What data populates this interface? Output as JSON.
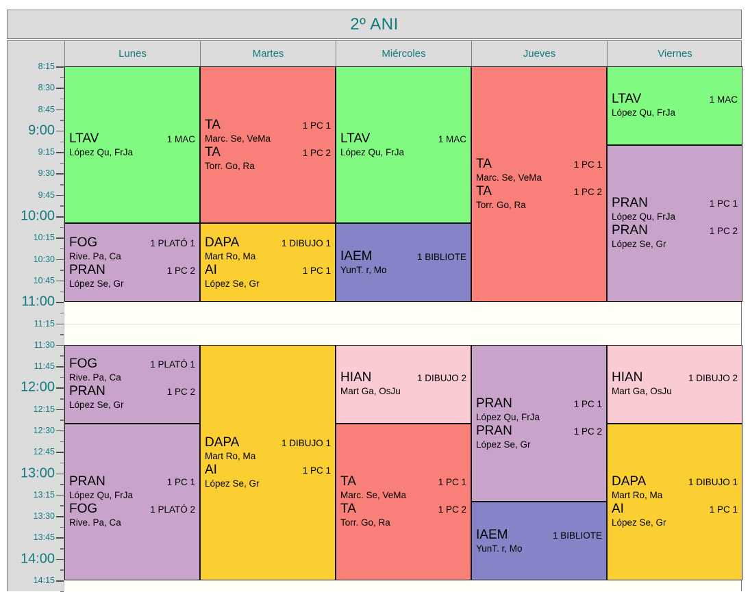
{
  "title": "2º ANI",
  "colors": {
    "accent_teal": "#0F7B7E",
    "header_bg": "#DCDCDC",
    "grid_bg": "#FFFFF6",
    "outer_border": "#7A7A7A",
    "block_border": "#141414",
    "green": "#81FA81",
    "salmon": "#F98078",
    "lilac": "#C8A4CA",
    "gold": "#FBCE31",
    "periwinkle": "#8584C6",
    "pink": "#FBCBD3"
  },
  "days": [
    "Lunes",
    "Martes",
    "Miércoles",
    "Jueves",
    "Viernes"
  ],
  "time_axis": {
    "start": "8:15",
    "end": "14:15",
    "labels": [
      {
        "t": "8:15",
        "hour": false
      },
      {
        "t": "8:30",
        "hour": false
      },
      {
        "t": "8:45",
        "hour": false
      },
      {
        "t": "9:00",
        "hour": true
      },
      {
        "t": "9:15",
        "hour": false
      },
      {
        "t": "9:30",
        "hour": false
      },
      {
        "t": "9:45",
        "hour": false
      },
      {
        "t": "10:00",
        "hour": true
      },
      {
        "t": "10:15",
        "hour": false
      },
      {
        "t": "10:30",
        "hour": false
      },
      {
        "t": "10:45",
        "hour": false
      },
      {
        "t": "11:00",
        "hour": true
      },
      {
        "t": "11:15",
        "hour": false
      },
      {
        "t": "11:30",
        "hour": false
      },
      {
        "t": "11:45",
        "hour": false
      },
      {
        "t": "12:00",
        "hour": true
      },
      {
        "t": "12:15",
        "hour": false
      },
      {
        "t": "12:30",
        "hour": false
      },
      {
        "t": "12:45",
        "hour": false
      },
      {
        "t": "13:00",
        "hour": true
      },
      {
        "t": "13:15",
        "hour": false
      },
      {
        "t": "13:30",
        "hour": false
      },
      {
        "t": "13:45",
        "hour": false
      },
      {
        "t": "14:00",
        "hour": true
      },
      {
        "t": "14:15",
        "hour": false
      }
    ],
    "break_separator_at": "11:15"
  },
  "schedule": [
    {
      "day": "Lunes",
      "blocks": [
        {
          "start": "8:15",
          "end": "10:05",
          "color": "green",
          "entries": [
            {
              "subject": "LTAV",
              "room": "1 MAC",
              "teacher": "López Qu, FrJa"
            }
          ]
        },
        {
          "start": "10:05",
          "end": "11:00",
          "color": "lilac",
          "entries": [
            {
              "subject": "FOG",
              "room": "1 PLATÓ 1",
              "teacher": "Rive. Pa, Ca"
            },
            {
              "subject": "PRAN",
              "room": "1 PC 2",
              "teacher": "López Se, Gr"
            }
          ]
        },
        {
          "start": "11:30",
          "end": "12:25",
          "color": "lilac",
          "entries": [
            {
              "subject": "FOG",
              "room": "1 PLATÓ 1",
              "teacher": "Rive. Pa, Ca"
            },
            {
              "subject": "PRAN",
              "room": "1 PC 2",
              "teacher": "López Se, Gr"
            }
          ]
        },
        {
          "start": "12:25",
          "end": "14:15",
          "color": "lilac",
          "entries": [
            {
              "subject": "PRAN",
              "room": "1 PC 1",
              "teacher": "López Qu, FrJa"
            },
            {
              "subject": "FOG",
              "room": "1 PLATÓ 2",
              "teacher": "Rive. Pa, Ca"
            }
          ]
        }
      ]
    },
    {
      "day": "Martes",
      "blocks": [
        {
          "start": "8:15",
          "end": "10:05",
          "color": "salmon",
          "entries": [
            {
              "subject": "TA",
              "room": "1 PC 1",
              "teacher": "Marc. Se, VeMa"
            },
            {
              "subject": "TA",
              "room": "1 PC 2",
              "teacher": "Torr. Go, Ra"
            }
          ]
        },
        {
          "start": "10:05",
          "end": "11:00",
          "color": "gold",
          "entries": [
            {
              "subject": "DAPA",
              "room": "1 DIBUJO 1",
              "teacher": "Mart Ro, Ma"
            },
            {
              "subject": "AI",
              "room": "1 PC 1",
              "teacher": "López Se, Gr"
            }
          ]
        },
        {
          "start": "11:30",
          "end": "14:15",
          "color": "gold",
          "entries": [
            {
              "subject": "DAPA",
              "room": "1 DIBUJO 1",
              "teacher": "Mart Ro, Ma"
            },
            {
              "subject": "AI",
              "room": "1 PC 1",
              "teacher": "López Se, Gr"
            }
          ]
        }
      ]
    },
    {
      "day": "Miércoles",
      "blocks": [
        {
          "start": "8:15",
          "end": "10:05",
          "color": "green",
          "entries": [
            {
              "subject": "LTAV",
              "room": "1 MAC",
              "teacher": "López Qu, FrJa"
            }
          ]
        },
        {
          "start": "10:05",
          "end": "11:00",
          "color": "periwinkle",
          "entries": [
            {
              "subject": "IAEM",
              "room": "1 BIBLIOTE",
              "teacher": "YunT. r, Mo"
            }
          ]
        },
        {
          "start": "11:30",
          "end": "12:25",
          "color": "pink",
          "entries": [
            {
              "subject": "HIAN",
              "room": "1 DIBUJO 2",
              "teacher": "Mart Ga, OsJu"
            }
          ]
        },
        {
          "start": "12:25",
          "end": "14:15",
          "color": "salmon",
          "entries": [
            {
              "subject": "TA",
              "room": "1 PC 1",
              "teacher": "Marc. Se, VeMa"
            },
            {
              "subject": "TA",
              "room": "1 PC 2",
              "teacher": "Torr. Go, Ra"
            }
          ]
        }
      ]
    },
    {
      "day": "Jueves",
      "blocks": [
        {
          "start": "8:15",
          "end": "11:00",
          "color": "salmon",
          "entries": [
            {
              "subject": "TA",
              "room": "1 PC 1",
              "teacher": "Marc. Se, VeMa"
            },
            {
              "subject": "TA",
              "room": "1 PC 2",
              "teacher": "Torr. Go, Ra"
            }
          ]
        },
        {
          "start": "11:30",
          "end": "13:20",
          "color": "lilac",
          "entries": [
            {
              "subject": "PRAN",
              "room": "1 PC 1",
              "teacher": "López Qu, FrJa"
            },
            {
              "subject": "PRAN",
              "room": "1 PC 2",
              "teacher": "López Se, Gr"
            }
          ]
        },
        {
          "start": "13:20",
          "end": "14:15",
          "color": "periwinkle",
          "entries": [
            {
              "subject": "IAEM",
              "room": "1 BIBLIOTE",
              "teacher": "YunT. r, Mo"
            }
          ]
        }
      ]
    },
    {
      "day": "Viernes",
      "blocks": [
        {
          "start": "8:15",
          "end": "9:10",
          "color": "green",
          "entries": [
            {
              "subject": "LTAV",
              "room": "1 MAC",
              "teacher": "López Qu, FrJa"
            }
          ]
        },
        {
          "start": "9:10",
          "end": "11:00",
          "color": "lilac",
          "entries": [
            {
              "subject": "PRAN",
              "room": "1 PC 1",
              "teacher": "López Qu, FrJa"
            },
            {
              "subject": "PRAN",
              "room": "1 PC 2",
              "teacher": "López Se, Gr"
            }
          ]
        },
        {
          "start": "11:30",
          "end": "12:25",
          "color": "pink",
          "entries": [
            {
              "subject": "HIAN",
              "room": "1 DIBUJO 2",
              "teacher": "Mart Ga, OsJu"
            }
          ]
        },
        {
          "start": "12:25",
          "end": "14:15",
          "color": "gold",
          "entries": [
            {
              "subject": "DAPA",
              "room": "1 DIBUJO 1",
              "teacher": "Mart Ro, Ma"
            },
            {
              "subject": "AI",
              "room": "1 PC 1",
              "teacher": "López Se, Gr"
            }
          ]
        }
      ]
    }
  ]
}
